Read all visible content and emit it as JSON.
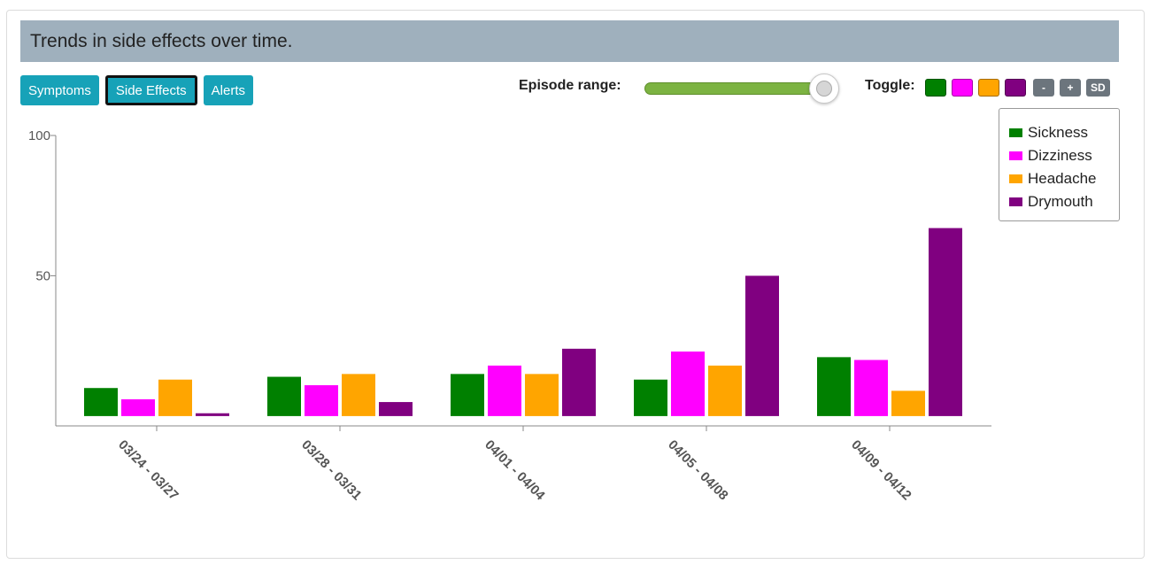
{
  "header": {
    "title": "Trends in side effects over time."
  },
  "tabs": [
    {
      "label": "Symptoms",
      "active": false
    },
    {
      "label": "Side Effects",
      "active": true
    },
    {
      "label": "Alerts",
      "active": false
    }
  ],
  "controls": {
    "episode_range_label": "Episode range:",
    "episode_range_value": 1.0,
    "toggle_label": "Toggle:",
    "toggle_colors": [
      "#008000",
      "#ff00ff",
      "#ffa500",
      "#800080"
    ],
    "minus_label": "-",
    "plus_label": "+",
    "sd_label": "SD"
  },
  "chart_data": {
    "type": "bar",
    "categories": [
      "03/24 - 03/27",
      "03/28 - 03/31",
      "04/01 - 04/04",
      "04/05 - 04/08",
      "04/09 - 04/12"
    ],
    "series": [
      {
        "name": "Sickness",
        "color": "#008000",
        "values": [
          10,
          14,
          15,
          13,
          21
        ]
      },
      {
        "name": "Dizziness",
        "color": "#ff00ff",
        "values": [
          6,
          11,
          18,
          23,
          20
        ]
      },
      {
        "name": "Headache",
        "color": "#ffa500",
        "values": [
          13,
          15,
          15,
          18,
          9
        ]
      },
      {
        "name": "Drymouth",
        "color": "#800080",
        "values": [
          1,
          5,
          24,
          50,
          67
        ]
      }
    ],
    "y_ticks": [
      50,
      100
    ],
    "y_tick_labels": [
      "50",
      "100"
    ],
    "ylim": [
      -3.5,
      100
    ],
    "legend_position": "right",
    "grid": false
  }
}
